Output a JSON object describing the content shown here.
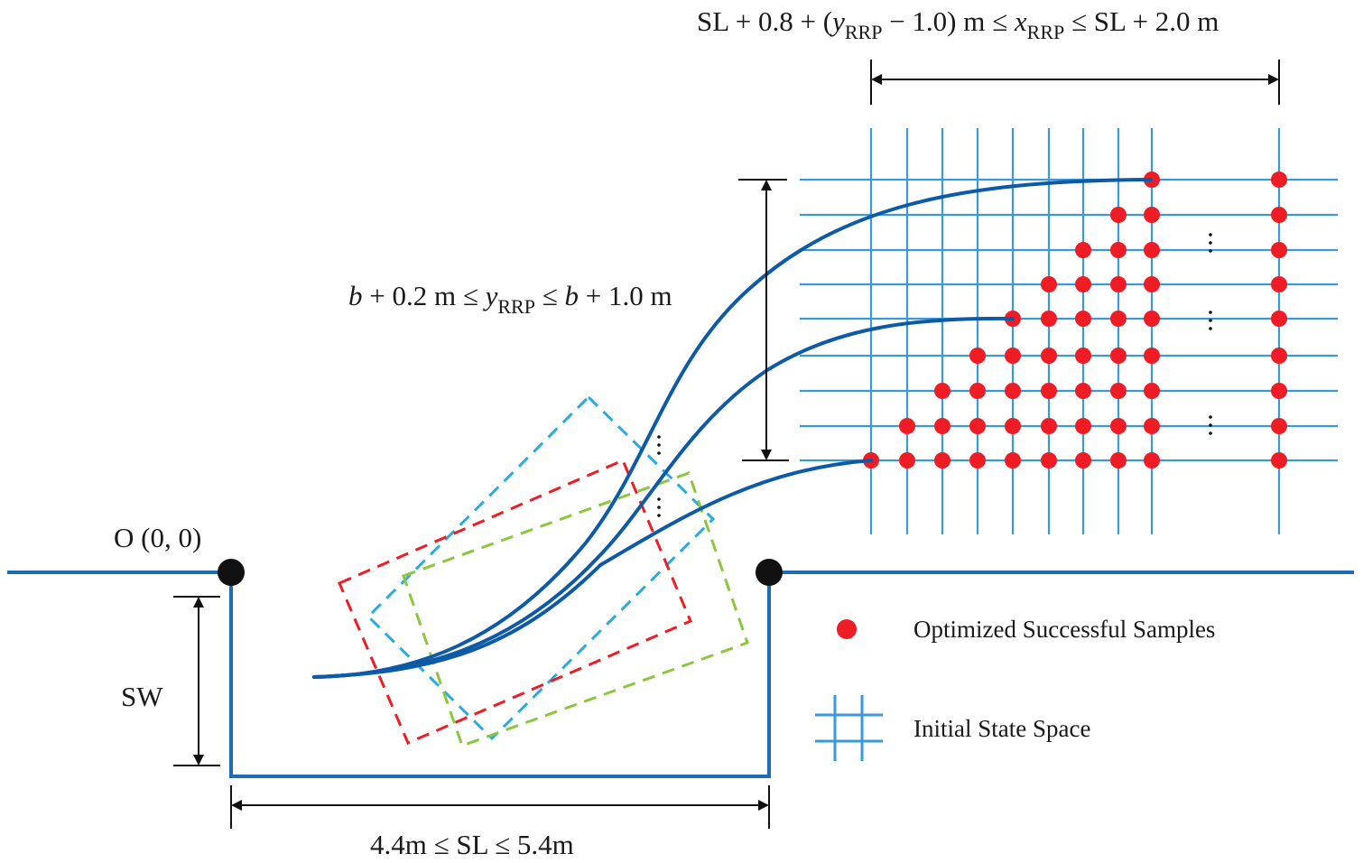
{
  "labels": {
    "origin": "O (0, 0)",
    "sw": "SW",
    "sl_range": "4.4m ≤ SL ≤ 5.4m",
    "y_range": {
      "b1": "b",
      "mid1": " + 0.2 m ≤ ",
      "y": "y",
      "sub": "RRP",
      "mid2": " ≤ ",
      "b2": "b",
      "end": " + 1.0 m"
    },
    "x_range": {
      "pre": "SL + 0.8 + (",
      "y": "y",
      "sub1": "RRP",
      "mid": " − 1.0) m ≤ ",
      "x": "x",
      "sub2": "RRP",
      "end": " ≤ SL + 2.0 m"
    }
  },
  "legend": {
    "dots_label": "Optimized Successful Samples",
    "grid_label": "Initial State Space"
  },
  "colors": {
    "curb": "#1e6cb5",
    "grid": "#3a9ad9",
    "dot": "#ee1c24",
    "path": "#0d5aa7",
    "box_red": "#ee1c24",
    "box_green": "#8cc63f",
    "box_blue": "#29abe2"
  },
  "grid": {
    "columns": 11,
    "rows": 9,
    "dots_per_row_from_bottom": [
      9,
      8,
      7,
      6,
      5,
      4,
      3,
      2,
      1
    ]
  }
}
